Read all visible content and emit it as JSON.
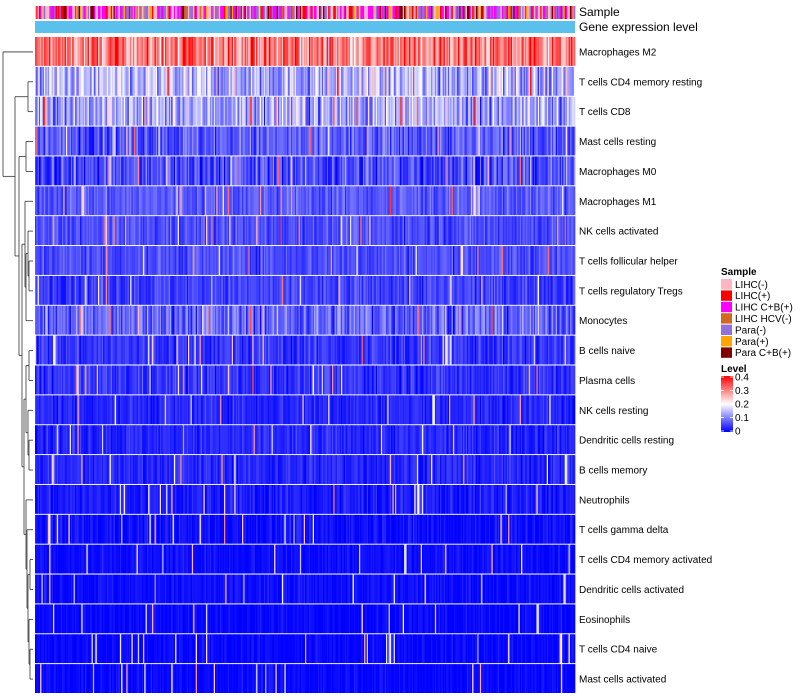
{
  "chart_data": {
    "type": "heatmap",
    "annotation_tracks": [
      "Sample",
      "Gene expression level"
    ],
    "rows": [
      {
        "label": "Macrophages M2",
        "mean": 0.3,
        "spread": 0.1
      },
      {
        "label": "T cells CD4 memory resting",
        "mean": 0.14,
        "spread": 0.1
      },
      {
        "label": "T cells CD8",
        "mean": 0.13,
        "spread": 0.09
      },
      {
        "label": "Mast cells resting",
        "mean": 0.07,
        "spread": 0.06
      },
      {
        "label": "Macrophages M0",
        "mean": 0.06,
        "spread": 0.07
      },
      {
        "label": "Macrophages M1",
        "mean": 0.07,
        "spread": 0.04
      },
      {
        "label": "NK cells activated",
        "mean": 0.06,
        "spread": 0.04
      },
      {
        "label": "T cells follicular helper",
        "mean": 0.06,
        "spread": 0.04
      },
      {
        "label": "T cells regulatory  Tregs",
        "mean": 0.05,
        "spread": 0.04
      },
      {
        "label": "Monocytes",
        "mean": 0.08,
        "spread": 0.07
      },
      {
        "label": "B cells naive",
        "mean": 0.04,
        "spread": 0.04
      },
      {
        "label": "Plasma cells",
        "mean": 0.04,
        "spread": 0.04
      },
      {
        "label": "NK cells resting",
        "mean": 0.03,
        "spread": 0.03
      },
      {
        "label": "Dendritic cells resting",
        "mean": 0.03,
        "spread": 0.03
      },
      {
        "label": "B cells memory",
        "mean": 0.03,
        "spread": 0.03
      },
      {
        "label": "Neutrophils",
        "mean": 0.02,
        "spread": 0.03
      },
      {
        "label": "T cells gamma delta",
        "mean": 0.01,
        "spread": 0.03
      },
      {
        "label": "T cells CD4 memory activated",
        "mean": 0.01,
        "spread": 0.02
      },
      {
        "label": "Dendritic cells activated",
        "mean": 0.01,
        "spread": 0.02
      },
      {
        "label": "Eosinophils",
        "mean": 0.005,
        "spread": 0.02
      },
      {
        "label": "T cells CD4 naive",
        "mean": 0.005,
        "spread": 0.02
      },
      {
        "label": "Mast cells activated",
        "mean": 0.005,
        "spread": 0.02
      }
    ],
    "n_samples": 420,
    "sample_groups": [
      {
        "name": "LIHC(-)",
        "color": "#FFB6C1",
        "weight": 0.25
      },
      {
        "name": "LIHC(+)",
        "color": "#FF0000",
        "weight": 0.1
      },
      {
        "name": "LIHC C+B(+)",
        "color": "#FF00FF",
        "weight": 0.22
      },
      {
        "name": "LIHC HCV(-)",
        "color": "#D2691E",
        "weight": 0.05
      },
      {
        "name": "Para(-)",
        "color": "#9370DB",
        "weight": 0.2
      },
      {
        "name": "Para(+)",
        "color": "#FFA500",
        "weight": 0.1
      },
      {
        "name": "Para C+B(+)",
        "color": "#800000",
        "weight": 0.08
      }
    ],
    "expression_track_color": "#5BC0EB",
    "color_scale": {
      "title": "Level",
      "min": 0,
      "max": 0.4,
      "ticks": [
        0.4,
        0.3,
        0.2,
        0.1,
        0
      ],
      "tick_labels": [
        "0.4",
        "0.3",
        "0.2",
        "0.1",
        "0"
      ],
      "stops": [
        {
          "value": 0.0,
          "color": "#0000FF"
        },
        {
          "value": 0.2,
          "color": "#FFFFFF"
        },
        {
          "value": 0.4,
          "color": "#FF0000"
        }
      ]
    },
    "legend_title": "Sample",
    "row_dendrogram": true
  }
}
